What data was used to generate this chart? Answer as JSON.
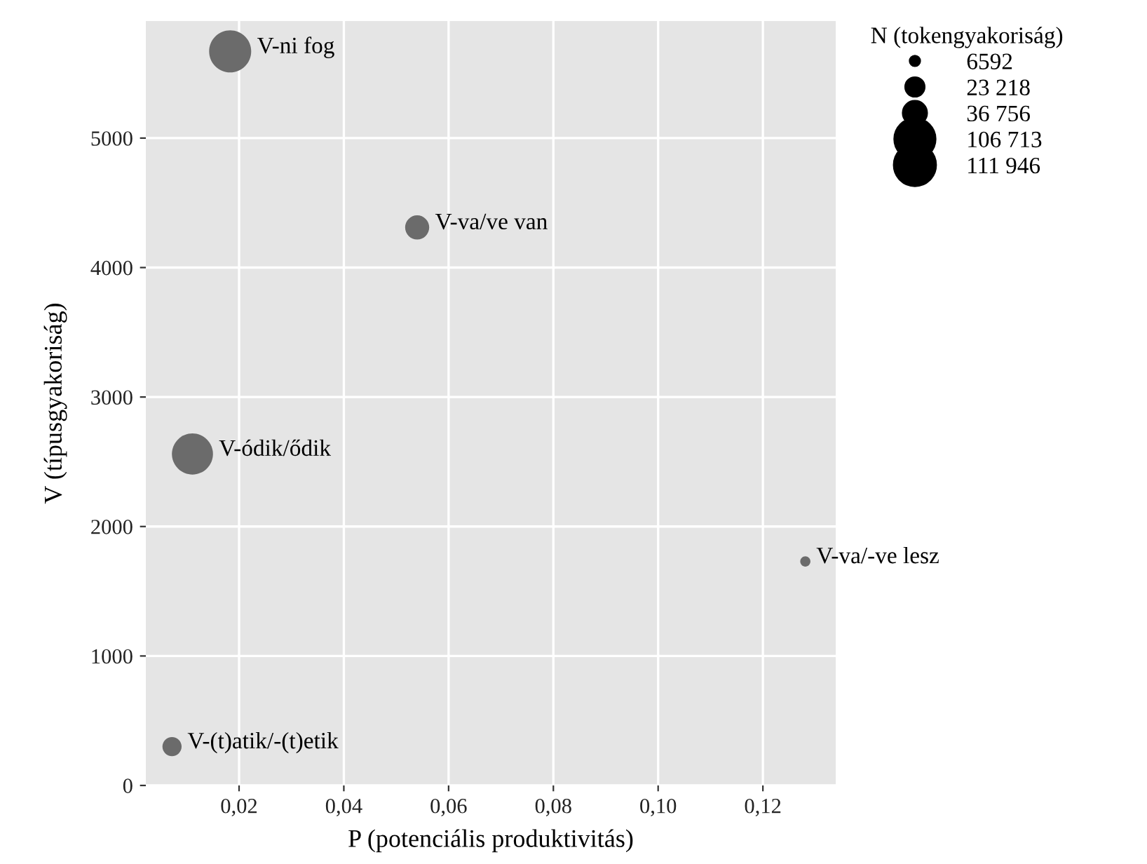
{
  "chart_data": {
    "type": "bubble",
    "xlabel": "P (potenciális produktivitás)",
    "ylabel": "V (típusgyakoriság)",
    "legend_title": "N (tokengyakoriság)",
    "x": [
      0.0183,
      0.054,
      0.0111,
      0.1281,
      0.0072
    ],
    "values": [
      5670,
      4310,
      2560,
      1730,
      300
    ],
    "sizes": [
      111946,
      36756,
      106713,
      6592,
      23218
    ],
    "color": "#6b6b6b",
    "size_legend": [
      {
        "value": 6592,
        "label": "6592"
      },
      {
        "value": 23218,
        "label": "23 218"
      },
      {
        "value": 36756,
        "label": "36 756"
      },
      {
        "value": 106713,
        "label": "106 713"
      },
      {
        "value": 111946,
        "label": "111 946"
      }
    ],
    "annotations": [
      {
        "text": "V-ni fog",
        "x": 0.0183,
        "y": 5670
      },
      {
        "text": "V-va/ve van",
        "x": 0.054,
        "y": 4310
      },
      {
        "text": "V-ódik/ődik",
        "x": 0.0111,
        "y": 2560
      },
      {
        "text": "V-va/-ve lesz",
        "x": 0.1281,
        "y": 1730
      },
      {
        "text": "V-(t)atik/-(t)etik",
        "x": 0.0072,
        "y": 300
      }
    ],
    "xlim": [
      0.0022,
      0.1339
    ],
    "ylim": [
      0,
      5904
    ],
    "xticks": [
      {
        "value": 0.02,
        "label": "0,02"
      },
      {
        "value": 0.04,
        "label": "0,04"
      },
      {
        "value": 0.06,
        "label": "0,06"
      },
      {
        "value": 0.08,
        "label": "0,08"
      },
      {
        "value": 0.1,
        "label": "0,10"
      },
      {
        "value": 0.12,
        "label": "0,12"
      }
    ],
    "yticks": [
      0,
      1000,
      2000,
      3000,
      4000,
      5000
    ],
    "grid": true,
    "marker": "circle"
  }
}
